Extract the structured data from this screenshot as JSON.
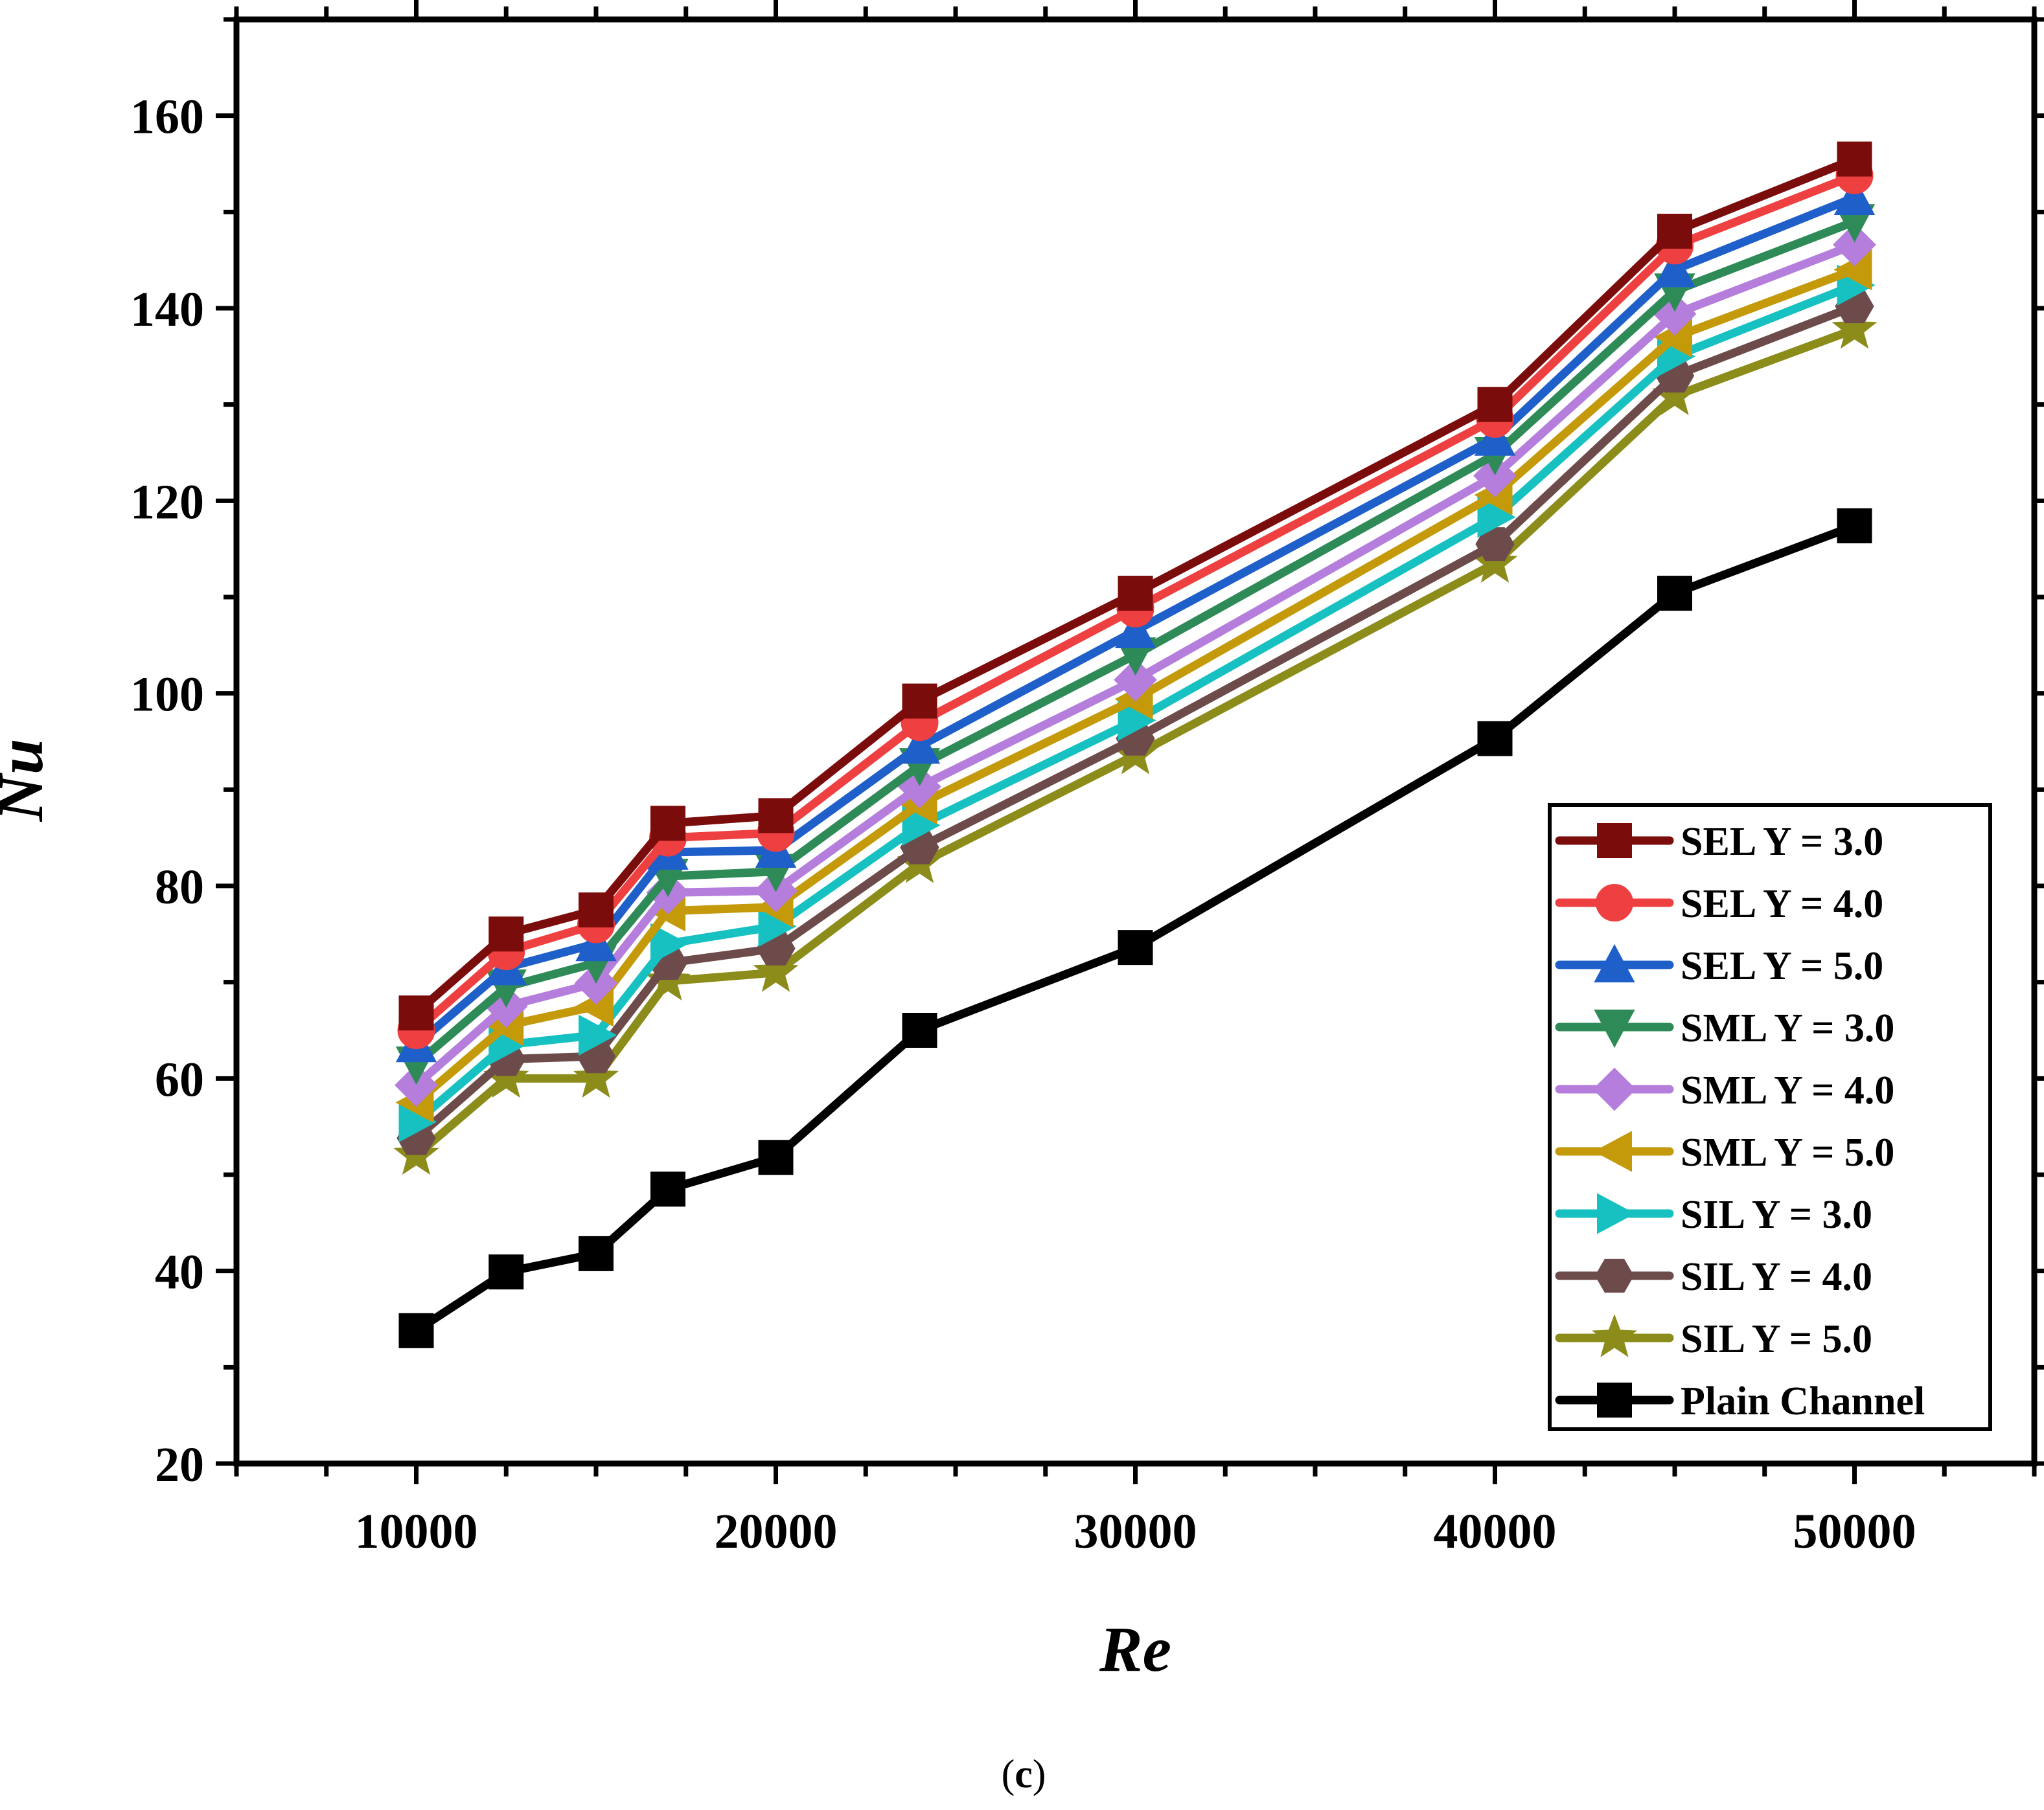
{
  "chart_data": {
    "type": "line",
    "title": "",
    "xlabel": "Re",
    "ylabel": "Nu",
    "xlim": [
      5000,
      55000
    ],
    "ylim": [
      20,
      170
    ],
    "xticks": [
      10000,
      20000,
      30000,
      40000,
      50000
    ],
    "xtick_labels": [
      "10000",
      "20000",
      "30000",
      "40000",
      "50000"
    ],
    "yticks": [
      20,
      40,
      60,
      80,
      100,
      120,
      140,
      160
    ],
    "ytick_labels": [
      "20",
      "40",
      "60",
      "80",
      "100",
      "120",
      "140",
      "160"
    ],
    "legend_position": "lower-right",
    "x": [
      10000,
      12500,
      15000,
      17000,
      20000,
      24000,
      30000,
      40000,
      45000,
      50000
    ],
    "series": [
      {
        "name": "SEL Y = 3.0",
        "color": "#7b0c0c",
        "marker": "square",
        "values": [
          66.8,
          75.0,
          77.5,
          86.5,
          87.3,
          99.2,
          110.4,
          130.0,
          148.0,
          155.5
        ]
      },
      {
        "name": "SEL Y = 4.0",
        "color": "#ee4040",
        "marker": "circle",
        "values": [
          65.0,
          73.2,
          76.0,
          85.0,
          85.5,
          97.0,
          108.8,
          128.5,
          146.5,
          153.8
        ]
      },
      {
        "name": "SEL Y = 5.0",
        "color": "#1f5fc9",
        "marker": "triangle-up",
        "values": [
          63.5,
          71.5,
          74.0,
          83.5,
          83.7,
          94.5,
          106.5,
          126.5,
          144.0,
          151.5
        ]
      },
      {
        "name": "SML Y = 3.0",
        "color": "#2e8b57",
        "marker": "triangle-down",
        "values": [
          61.5,
          69.5,
          72.0,
          81.0,
          81.5,
          92.5,
          104.0,
          124.8,
          141.8,
          149.0
        ]
      },
      {
        "name": "SML Y = 4.0",
        "color": "#b57edc",
        "marker": "diamond",
        "values": [
          59.3,
          67.5,
          69.9,
          79.3,
          79.5,
          90.3,
          101.4,
          122.6,
          139.4,
          146.6
        ]
      },
      {
        "name": "SML Y = 5.0",
        "color": "#c49a0a",
        "marker": "triangle-left",
        "values": [
          57.5,
          65.5,
          67.5,
          77.4,
          77.8,
          88.5,
          99.4,
          120.6,
          137.0,
          144.0
        ]
      },
      {
        "name": "SIL Y = 3.0",
        "color": "#17c1c1",
        "marker": "triangle-right",
        "values": [
          55.5,
          63.5,
          64.5,
          74.0,
          75.8,
          86.3,
          97.2,
          118.3,
          135.0,
          142.4
        ]
      },
      {
        "name": "SIL Y = 4.0",
        "color": "#6e4b4b",
        "marker": "hexagon",
        "values": [
          53.8,
          62.0,
          62.3,
          72.0,
          73.5,
          84.0,
          95.3,
          115.5,
          133.0,
          140.2
        ]
      },
      {
        "name": "SIL Y = 5.0",
        "color": "#8c8c1a",
        "marker": "star",
        "values": [
          52.0,
          60.0,
          60.0,
          70.1,
          71.0,
          82.3,
          93.6,
          113.5,
          130.9,
          137.8
        ]
      },
      {
        "name": "Plain Channel",
        "color": "#000000",
        "marker": "square",
        "values": [
          33.8,
          39.9,
          41.8,
          48.5,
          51.8,
          65.0,
          73.6,
          95.3,
          110.4,
          117.4
        ]
      }
    ]
  },
  "caption": {
    "open": "(",
    "letter": "c",
    "close": ")"
  }
}
